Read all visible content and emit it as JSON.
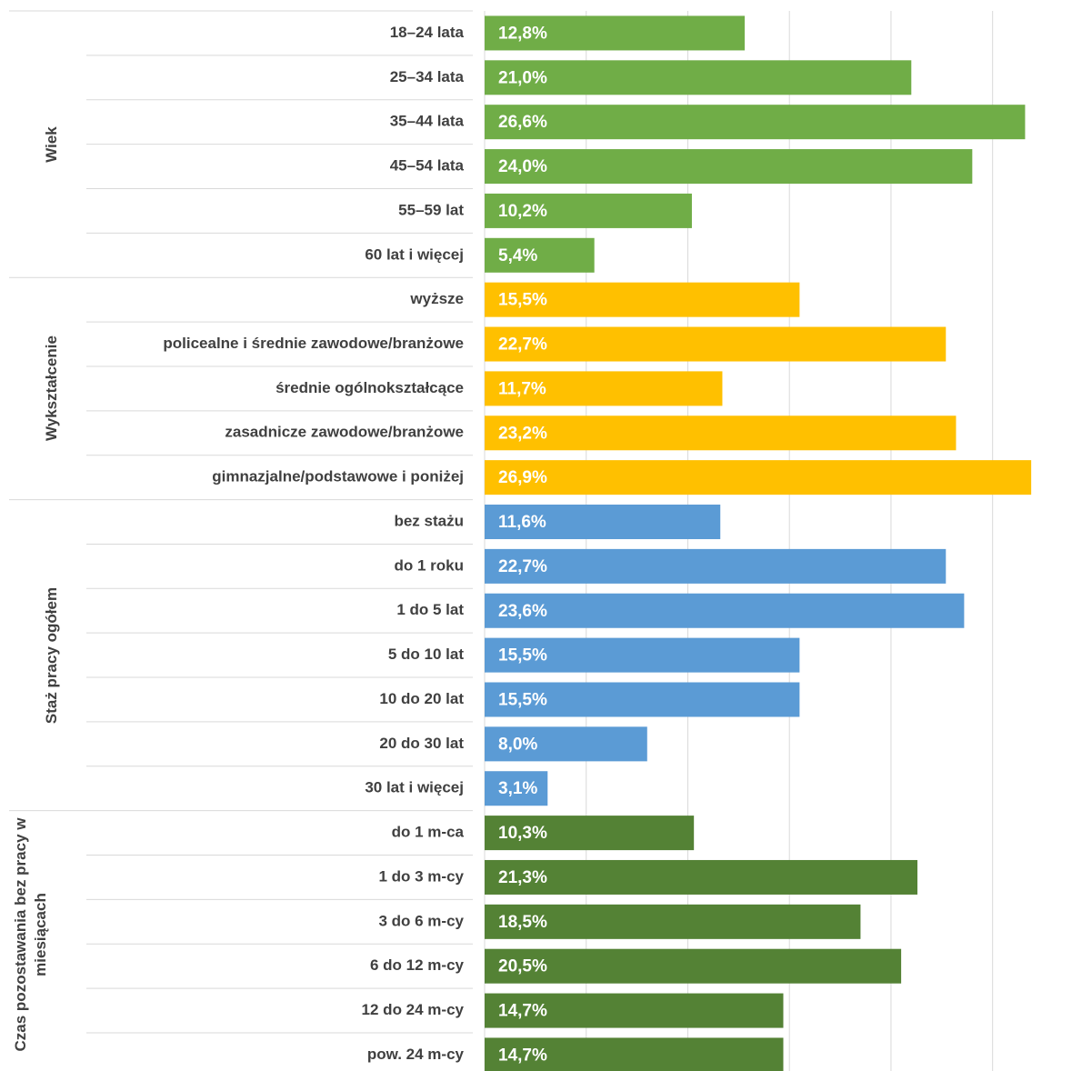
{
  "chart_data": {
    "type": "bar",
    "orientation": "horizontal",
    "grid": true,
    "xlim": [
      0,
      29.4
    ],
    "xticks": [
      0,
      5,
      10,
      15,
      20,
      25
    ],
    "series": [
      {
        "name": "Wiek",
        "color": "#70ad47",
        "categories": [
          "18–24 lata",
          "25–34 lata",
          "35–44 lata",
          "45–54 lata",
          "55–59 lat",
          "60 lat i więcej"
        ],
        "values": [
          12.8,
          21.0,
          26.6,
          24.0,
          10.2,
          5.4
        ],
        "value_labels": [
          "12,8%",
          "21,0%",
          "26,6%",
          "24,0%",
          "10,2%",
          "5,4%"
        ]
      },
      {
        "name": "Wykształcenie",
        "color": "#ffc000",
        "categories": [
          "wyższe",
          "policealne i średnie zawodowe/branżowe",
          "średnie ogólnokształcące",
          "zasadnicze zawodowe/branżowe",
          "gimnazjalne/podstawowe i poniżej"
        ],
        "values": [
          15.5,
          22.7,
          11.7,
          23.2,
          26.9
        ],
        "value_labels": [
          "15,5%",
          "22,7%",
          "11,7%",
          "23,2%",
          "26,9%"
        ]
      },
      {
        "name": "Staż pracy ogółem",
        "color": "#5b9bd5",
        "categories": [
          "bez stażu",
          "do 1 roku",
          "1 do 5 lat",
          "5 do 10 lat",
          "10 do 20 lat",
          "20 do 30 lat",
          "30 lat i więcej"
        ],
        "values": [
          11.6,
          22.7,
          23.6,
          15.5,
          15.5,
          8.0,
          3.1
        ],
        "value_labels": [
          "11,6%",
          "22,7%",
          "23,6%",
          "15,5%",
          "15,5%",
          "8,0%",
          "3,1%"
        ]
      },
      {
        "name": "Czas pozostawania bez pracy w miesiącach",
        "color": "#548235",
        "categories": [
          "do 1 m-ca",
          "1 do 3 m-cy",
          "3 do 6 m-cy",
          "6 do 12 m-cy",
          "12 do 24 m-cy",
          "pow. 24 m-cy"
        ],
        "values": [
          10.3,
          21.3,
          18.5,
          20.5,
          14.7,
          14.7
        ],
        "value_labels": [
          "10,3%",
          "21,3%",
          "18,5%",
          "20,5%",
          "14,7%",
          "14,7%"
        ]
      }
    ]
  }
}
